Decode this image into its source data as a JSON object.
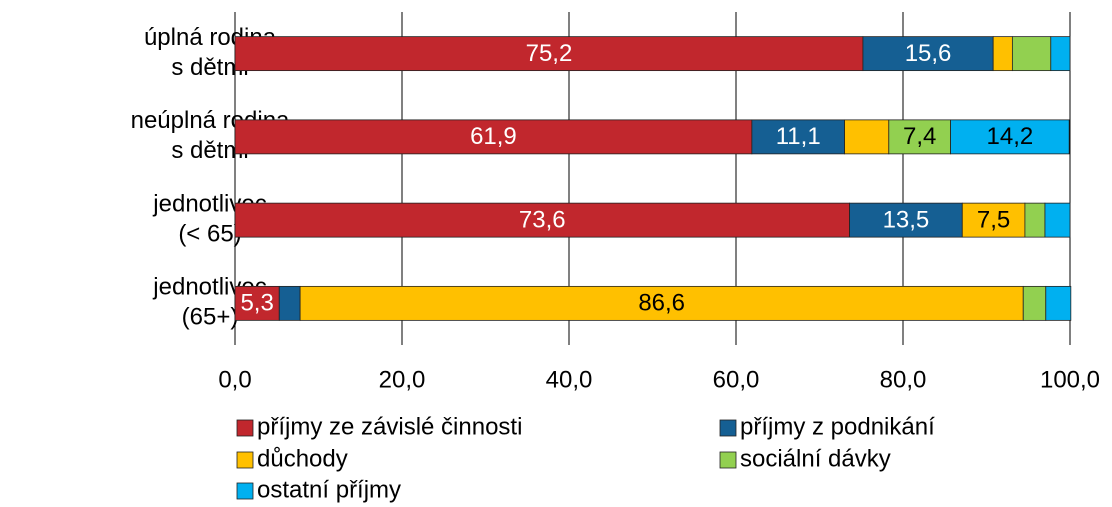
{
  "chart_data": {
    "type": "stacked-bar-horizontal",
    "categories": [
      [
        "úplná rodina",
        "s dětmi"
      ],
      [
        "neúplná rodina",
        "s dětmi"
      ],
      [
        "jednotlivec",
        "(< 65)"
      ],
      [
        "jednotlivec",
        "(65+)"
      ]
    ],
    "series": [
      {
        "name": "příjmy ze závislé činnosti",
        "color": "#c1272d",
        "values": [
          75.2,
          61.9,
          73.6,
          5.3
        ],
        "value_labels": [
          "75,2",
          "61,9",
          "73,6",
          "5,3"
        ]
      },
      {
        "name": "příjmy z podnikání",
        "color": "#155f93",
        "values": [
          15.6,
          11.1,
          13.5,
          2.5
        ],
        "value_labels": [
          "15,6",
          "11,1",
          "13,5",
          null
        ]
      },
      {
        "name": "důchody",
        "color": "#ffc000",
        "values": [
          2.3,
          5.3,
          7.5,
          86.6
        ],
        "value_labels": [
          null,
          null,
          "7,5",
          "86,6"
        ]
      },
      {
        "name": "sociální dávky",
        "color": "#92d050",
        "values": [
          4.6,
          7.4,
          2.4,
          2.7
        ],
        "value_labels": [
          null,
          "7,4",
          null,
          null
        ]
      },
      {
        "name": "ostatní příjmy",
        "color": "#00b0f0",
        "values": [
          2.3,
          14.2,
          3.0,
          3.0
        ],
        "value_labels": [
          null,
          "14,2",
          null,
          null
        ]
      }
    ],
    "xlim": [
      0,
      100
    ],
    "xticks": [
      {
        "value": 0,
        "label": "0,0"
      },
      {
        "value": 20,
        "label": "20,0"
      },
      {
        "value": 40,
        "label": "40,0"
      },
      {
        "value": 60,
        "label": "60,0"
      },
      {
        "value": 80,
        "label": "80,0"
      },
      {
        "value": 100,
        "label": "100,0"
      }
    ],
    "grid": true
  }
}
